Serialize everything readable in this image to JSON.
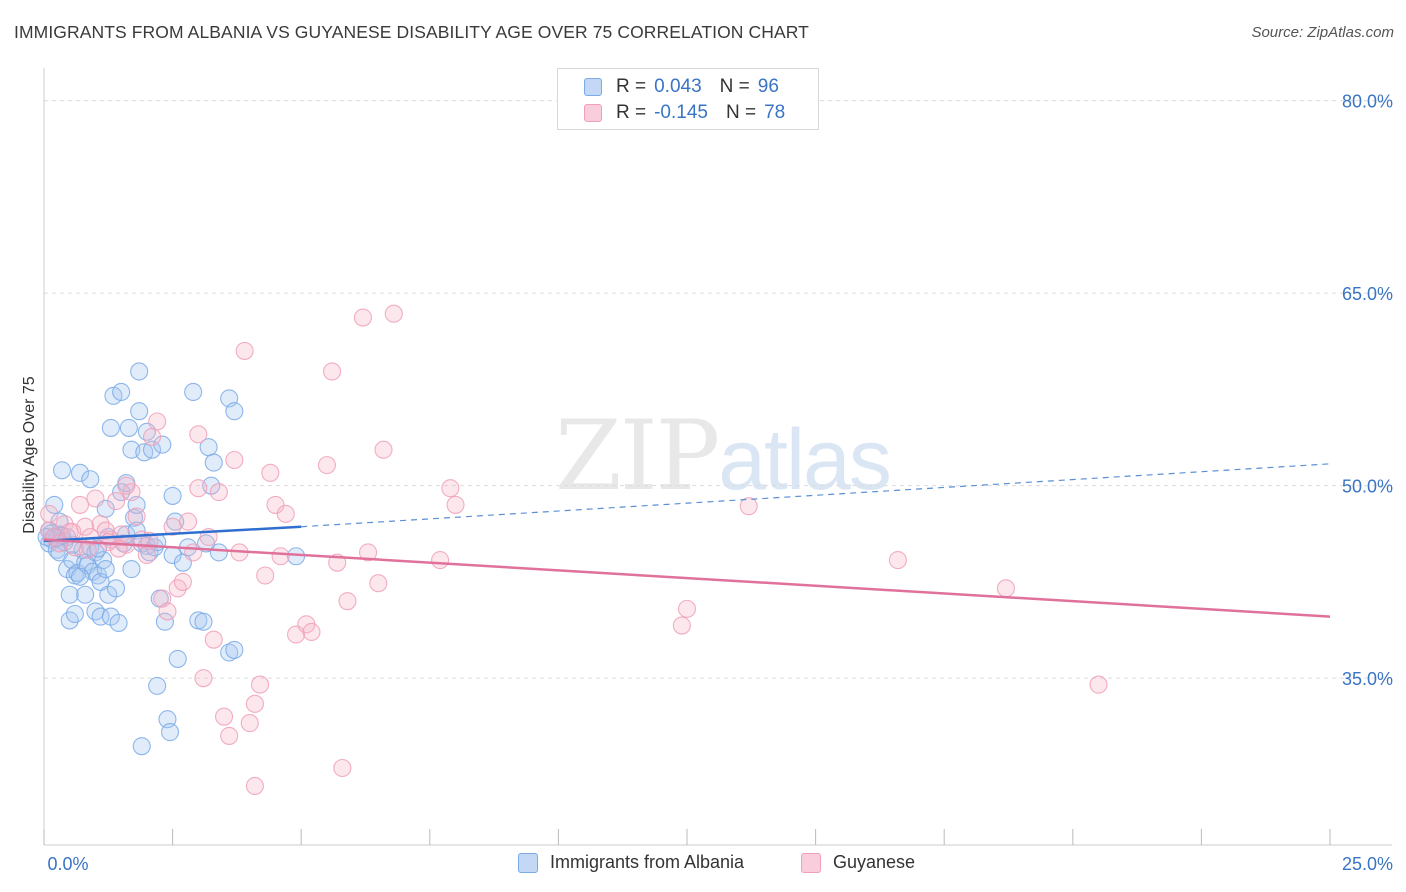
{
  "header": {
    "title": "IMMIGRANTS FROM ALBANIA VS GUYANESE DISABILITY AGE OVER 75 CORRELATION CHART",
    "source": "Source: ZipAtlas.com"
  },
  "legend_top": {
    "rows": [
      {
        "r_label": "R =",
        "r_value": "0.043",
        "n_label": "N =",
        "n_value": "96",
        "color": "#7aaae8"
      },
      {
        "r_label": "R =",
        "r_value": "-0.145",
        "n_label": "N =",
        "n_value": "78",
        "color": "#f0a0b8"
      }
    ]
  },
  "legend_bottom": {
    "items": [
      {
        "label": "Immigrants from Albania",
        "color": "#7aaae8"
      },
      {
        "label": "Guyanese",
        "color": "#f0a0b8"
      }
    ]
  },
  "watermark": {
    "zip": "ZIP",
    "atlas": "atlas"
  },
  "chart_data": {
    "type": "scatter",
    "ylabel": "Disability Age Over 75",
    "xlim": [
      0,
      25
    ],
    "ylim": [
      22,
      82
    ],
    "x_tick_labels": [
      "0.0%",
      "25.0%"
    ],
    "y_ticks": [
      35,
      50,
      65,
      80
    ],
    "y_tick_labels": [
      "35.0%",
      "50.0%",
      "65.0%",
      "80.0%"
    ],
    "grid": "horizontal dashed",
    "legend_position": "top-center",
    "series": [
      {
        "name": "Immigrants from Albania",
        "color": "#7aaae8",
        "trend": {
          "x": [
            0,
            5.0
          ],
          "y": [
            45.7,
            46.8
          ],
          "dashed_extension_to_x": 25,
          "dashed_extension_y": 51.7
        },
        "points": [
          [
            0.1,
            46.5
          ],
          [
            0.1,
            45.5
          ],
          [
            0.15,
            45.8
          ],
          [
            0.2,
            48.5
          ],
          [
            0.2,
            46.0
          ],
          [
            0.25,
            45.0
          ],
          [
            0.3,
            44.8
          ],
          [
            0.3,
            46.2
          ],
          [
            0.35,
            51.2
          ],
          [
            0.4,
            45.6
          ],
          [
            0.45,
            43.5
          ],
          [
            0.5,
            39.5
          ],
          [
            0.5,
            41.5
          ],
          [
            0.55,
            44.2
          ],
          [
            0.6,
            43.0
          ],
          [
            0.6,
            40.0
          ],
          [
            0.65,
            43.2
          ],
          [
            0.7,
            51.0
          ],
          [
            0.75,
            45.0
          ],
          [
            0.8,
            41.5
          ],
          [
            0.8,
            44.0
          ],
          [
            0.85,
            43.8
          ],
          [
            0.9,
            50.5
          ],
          [
            0.9,
            45.2
          ],
          [
            0.95,
            43.3
          ],
          [
            1.0,
            44.8
          ],
          [
            1.0,
            40.2
          ],
          [
            1.05,
            43.0
          ],
          [
            1.1,
            39.8
          ],
          [
            1.1,
            42.5
          ],
          [
            1.15,
            44.2
          ],
          [
            1.2,
            43.5
          ],
          [
            1.25,
            41.5
          ],
          [
            1.3,
            54.5
          ],
          [
            1.3,
            39.8
          ],
          [
            1.35,
            57.0
          ],
          [
            1.4,
            42.0
          ],
          [
            1.45,
            39.3
          ],
          [
            1.5,
            57.3
          ],
          [
            1.5,
            49.5
          ],
          [
            1.55,
            45.5
          ],
          [
            1.6,
            50.2
          ],
          [
            1.6,
            46.2
          ],
          [
            1.65,
            54.5
          ],
          [
            1.7,
            52.8
          ],
          [
            1.7,
            43.5
          ],
          [
            1.75,
            47.5
          ],
          [
            1.8,
            48.5
          ],
          [
            1.8,
            46.5
          ],
          [
            1.85,
            55.8
          ],
          [
            1.85,
            58.9
          ],
          [
            1.9,
            45.5
          ],
          [
            1.95,
            52.6
          ],
          [
            2.0,
            45.3
          ],
          [
            2.0,
            54.2
          ],
          [
            2.05,
            44.8
          ],
          [
            2.1,
            52.8
          ],
          [
            2.15,
            45.2
          ],
          [
            2.2,
            34.4
          ],
          [
            2.25,
            41.2
          ],
          [
            2.3,
            53.2
          ],
          [
            2.35,
            39.4
          ],
          [
            2.4,
            31.8
          ],
          [
            2.45,
            30.8
          ],
          [
            2.5,
            44.6
          ],
          [
            2.5,
            49.2
          ],
          [
            2.55,
            47.2
          ],
          [
            2.6,
            36.5
          ],
          [
            2.7,
            44.0
          ],
          [
            2.8,
            45.2
          ],
          [
            2.9,
            57.3
          ],
          [
            3.0,
            39.5
          ],
          [
            3.1,
            39.4
          ],
          [
            3.15,
            45.5
          ],
          [
            3.2,
            53.0
          ],
          [
            3.25,
            50.0
          ],
          [
            3.3,
            51.8
          ],
          [
            3.4,
            44.8
          ],
          [
            3.6,
            56.8
          ],
          [
            3.7,
            55.8
          ],
          [
            3.6,
            37.0
          ],
          [
            3.7,
            37.2
          ],
          [
            4.9,
            44.5
          ],
          [
            0.3,
            47.2
          ],
          [
            0.45,
            46.0
          ],
          [
            0.55,
            45.4
          ],
          [
            0.7,
            42.9
          ],
          [
            1.9,
            29.7
          ],
          [
            1.05,
            45.1
          ],
          [
            1.2,
            48.2
          ],
          [
            1.25,
            46.0
          ],
          [
            0.25,
            45.9
          ],
          [
            0.35,
            46.1
          ],
          [
            0.15,
            46.3
          ],
          [
            0.05,
            46.0
          ],
          [
            2.2,
            45.6
          ]
        ]
      },
      {
        "name": "Guyanese",
        "color": "#f0a0b8",
        "trend": {
          "x": [
            0,
            25
          ],
          "y": [
            45.8,
            39.8
          ]
        },
        "points": [
          [
            0.1,
            46.5
          ],
          [
            0.1,
            47.8
          ],
          [
            0.2,
            46.0
          ],
          [
            0.3,
            45.5
          ],
          [
            0.4,
            47.0
          ],
          [
            0.5,
            46.4
          ],
          [
            0.6,
            45.2
          ],
          [
            0.7,
            48.5
          ],
          [
            0.8,
            46.8
          ],
          [
            0.9,
            46.0
          ],
          [
            1.0,
            49.0
          ],
          [
            1.1,
            47.0
          ],
          [
            1.2,
            46.5
          ],
          [
            1.3,
            45.8
          ],
          [
            1.4,
            48.8
          ],
          [
            1.5,
            46.2
          ],
          [
            1.6,
            45.4
          ],
          [
            1.7,
            49.5
          ],
          [
            1.8,
            47.6
          ],
          [
            1.9,
            45.8
          ],
          [
            2.0,
            44.6
          ],
          [
            2.1,
            53.8
          ],
          [
            2.2,
            55.0
          ],
          [
            2.3,
            41.2
          ],
          [
            2.4,
            40.2
          ],
          [
            2.5,
            46.8
          ],
          [
            2.6,
            42.0
          ],
          [
            2.7,
            42.5
          ],
          [
            2.8,
            47.2
          ],
          [
            2.9,
            44.8
          ],
          [
            3.0,
            54.0
          ],
          [
            3.0,
            49.8
          ],
          [
            3.1,
            35.0
          ],
          [
            3.2,
            46.0
          ],
          [
            3.3,
            38.0
          ],
          [
            3.4,
            49.5
          ],
          [
            3.5,
            32.0
          ],
          [
            3.6,
            30.5
          ],
          [
            3.7,
            52.0
          ],
          [
            3.8,
            44.8
          ],
          [
            3.9,
            60.5
          ],
          [
            4.0,
            31.5
          ],
          [
            4.1,
            33.0
          ],
          [
            4.1,
            26.6
          ],
          [
            4.2,
            34.5
          ],
          [
            4.3,
            43.0
          ],
          [
            4.4,
            51.0
          ],
          [
            4.5,
            48.5
          ],
          [
            4.6,
            44.5
          ],
          [
            4.7,
            47.8
          ],
          [
            4.9,
            38.4
          ],
          [
            5.1,
            39.2
          ],
          [
            5.2,
            38.6
          ],
          [
            5.5,
            51.6
          ],
          [
            5.6,
            58.9
          ],
          [
            5.7,
            44.0
          ],
          [
            5.8,
            28.0
          ],
          [
            5.9,
            41.0
          ],
          [
            6.2,
            63.1
          ],
          [
            6.3,
            44.8
          ],
          [
            6.5,
            42.4
          ],
          [
            6.6,
            52.8
          ],
          [
            6.8,
            63.4
          ],
          [
            7.7,
            44.2
          ],
          [
            7.9,
            49.8
          ],
          [
            8.0,
            48.5
          ],
          [
            12.4,
            39.1
          ],
          [
            12.5,
            40.4
          ],
          [
            13.7,
            48.4
          ],
          [
            16.6,
            44.2
          ],
          [
            18.7,
            42.0
          ],
          [
            20.5,
            34.5
          ],
          [
            1.25,
            45.6
          ],
          [
            0.55,
            46.4
          ],
          [
            0.85,
            45.0
          ],
          [
            1.45,
            45.1
          ],
          [
            2.05,
            45.7
          ],
          [
            1.6,
            50.0
          ]
        ]
      }
    ]
  }
}
